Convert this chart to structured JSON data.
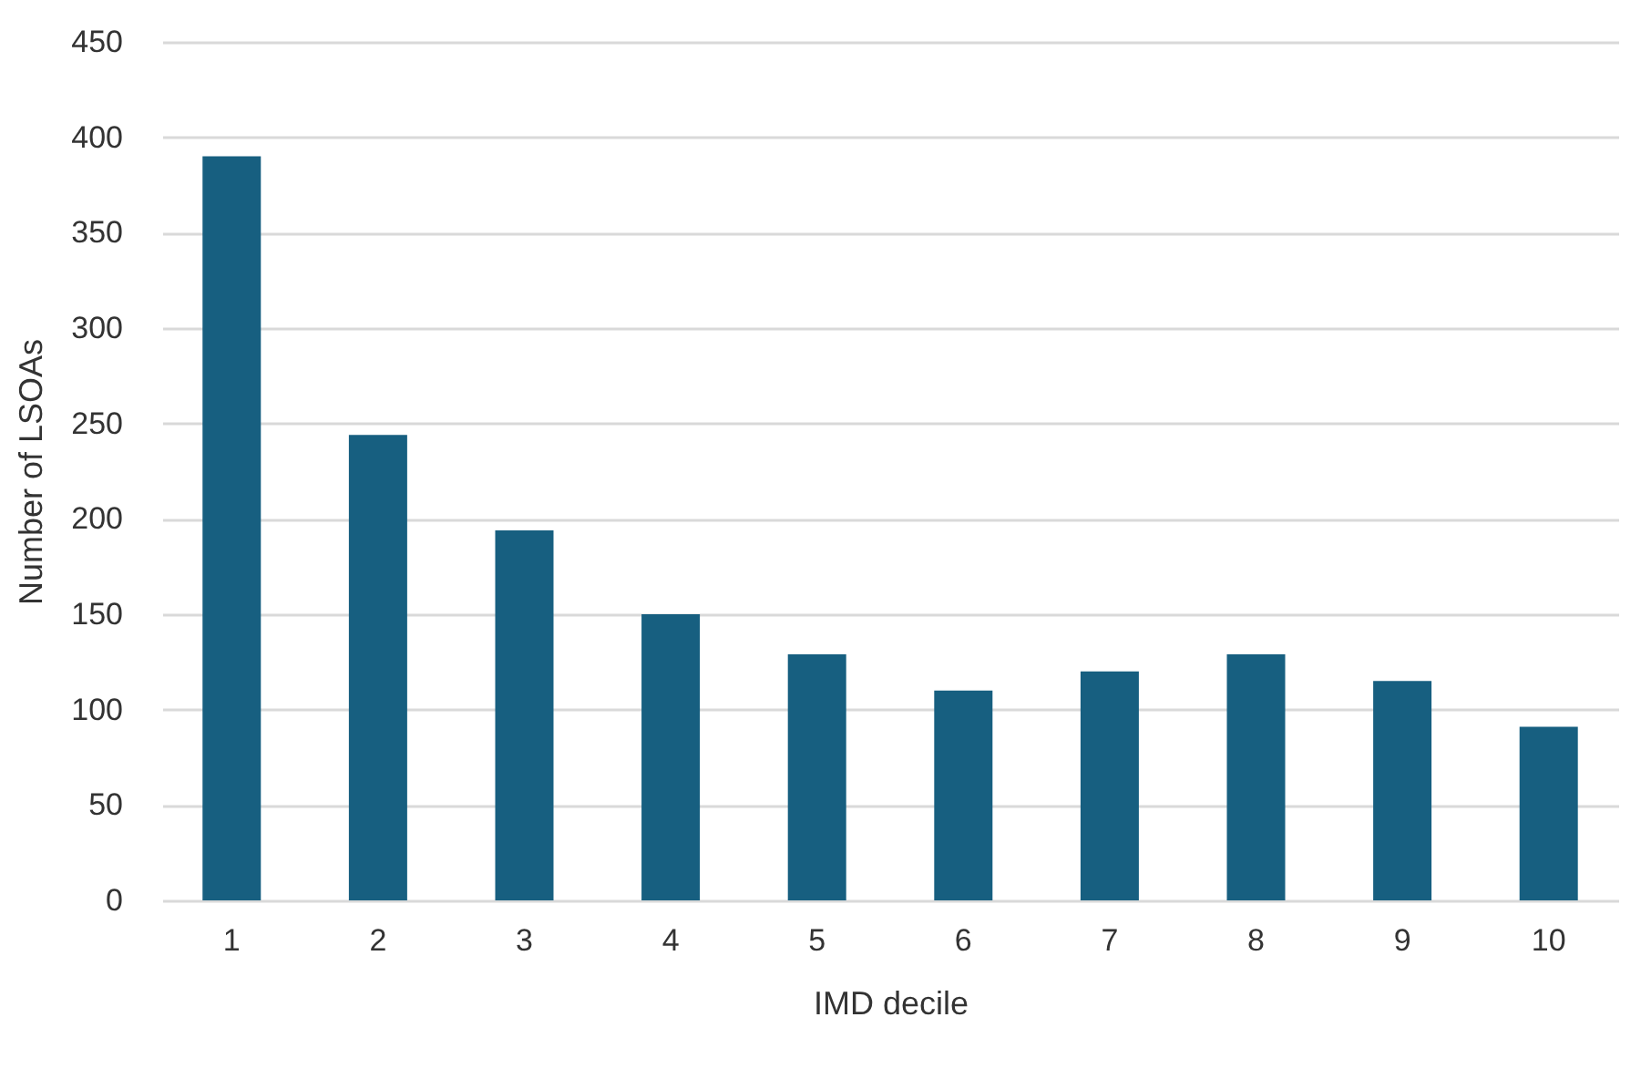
{
  "chart_data": {
    "type": "bar",
    "xlabel": "IMD decile",
    "ylabel": "Number of LSOAs",
    "categories": [
      "1",
      "2",
      "3",
      "4",
      "5",
      "6",
      "7",
      "8",
      "9",
      "10"
    ],
    "values": [
      390,
      244,
      194,
      150,
      129,
      110,
      120,
      129,
      115,
      91
    ],
    "color": "#175f80",
    "ylim": [
      0,
      450
    ],
    "yticks": [
      0,
      50,
      100,
      150,
      200,
      250,
      300,
      350,
      400,
      450
    ],
    "grid": "y"
  }
}
